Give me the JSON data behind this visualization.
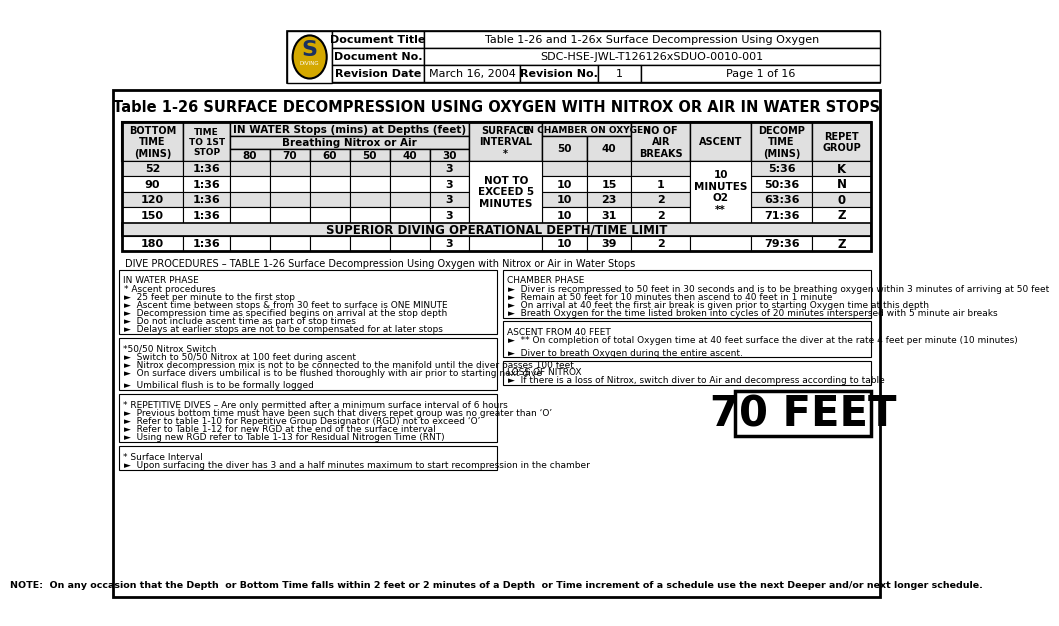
{
  "title": "Table 1-26 SURFACE DECOMPRESSION USING OXYGEN WITH NITROX OR AIR IN WATER STOPS",
  "header_doc_title": "Document Title",
  "header_doc_title_val": "Table 1-26 and 1-26x Surface Decompression Using Oxygen",
  "header_doc_no": "Document No.",
  "header_doc_no_val": "SDC-HSE-JWL-T126126xSDUO-0010-001",
  "header_rev_date": "Revision Date",
  "header_rev_date_val": "March 16, 2004",
  "header_rev_no": "Revision No.",
  "header_rev_no_val": "1",
  "header_page": "Page 1 of 16",
  "superior_row": "SUPERIOR DIVING OPERATIONAL DEPTH/TIME LIMIT",
  "dive_proc_header": "DIVE PROCEDURES – TABLE 1-26 Surface Decompression Using Oxygen with Nitrox or Air in Water Stops",
  "in_water_phase_title": "IN WATER PHASE",
  "in_water_phase_items": [
    "* Ascent procedures",
    "►  25 feet per minute to the first stop",
    "►  Ascent time between stops & from 30 feet to surface is ONE MINUTE",
    "►  Decompression time as specified begins on arrival at the stop depth",
    "►  Do not include ascent time as part of stop times",
    "►  Delays at earlier stops are not to be compensated for at later stops"
  ],
  "nitrox_switch_title": "*50/50 Nitrox Switch",
  "nitrox_switch_items": [
    "►  Switch to 50/50 Nitrox at 100 feet during ascent",
    "►  Nitrox decompression mix is not to be connected to the manifold until the diver passes 100 feet",
    "►  On surface divers umbilical is to be flushed thoroughly with air prior to starting next dive",
    "",
    "►  Umbilical flush is to be formally logged"
  ],
  "rep_dives_title": "* REPETITIVE DIVES – Are only permitted after a minimum surface interval of 6 hours",
  "rep_dives_items": [
    "►  Previous bottom time must have been such that divers repet group was no greater than ‘O’",
    "►  Refer to table 1-10 for Repetitive Group Designator (RGD) not to exceed ‘O’",
    "►  Refer to Table 1-12 for new RGD at the end of the surface interval",
    "►  Using new RGD refer to Table 1-13 for Residual Nitrogen Time (RNT)"
  ],
  "surface_interval_title": "* Surface Interval",
  "surface_interval_items": [
    "►  Upon surfacing the diver has 3 and a half minutes maximum to start recompression in the chamber"
  ],
  "chamber_phase_title": "CHAMBER PHASE",
  "chamber_phase_items": [
    "►  Diver is recompressed to 50 feet in 30 seconds and is to be breathing oxygen within 3 minutes of arriving at 50 feet",
    "►  Remain at 50 feet for 10 minutes then ascend to 40 feet in 1 minute",
    "►  On arrival at 40 feet the first air break is given prior to starting Oxygen time at this depth",
    "►  Breath Oxygen for the time listed broken into cycles of 20 minutes interspersed with 5 minute air breaks"
  ],
  "ascent_title": "ASCENT FROM 40 FEET",
  "ascent_items": [
    "►  ** On completion of total Oxygen time at 40 feet surface the diver at the rate 4 feet per minute (10 minutes)",
    "",
    "►  Diver to breath Oxygen during the entire ascent."
  ],
  "loss_nitrox_title": "LOSS OF NITROX",
  "loss_nitrox_items": [
    "►  If there is a loss of Nitrox, switch diver to Air and decompress according to table"
  ],
  "feet_label": "70 FEET",
  "note_text": "NOTE:  On any occasion that the Depth  or Bottom Time falls within 2 feet or 2 minutes of a Depth  or Time increment of a schedule use the next Deeper and/or next longer schedule.",
  "table_light_gray": "#e0e0e0"
}
